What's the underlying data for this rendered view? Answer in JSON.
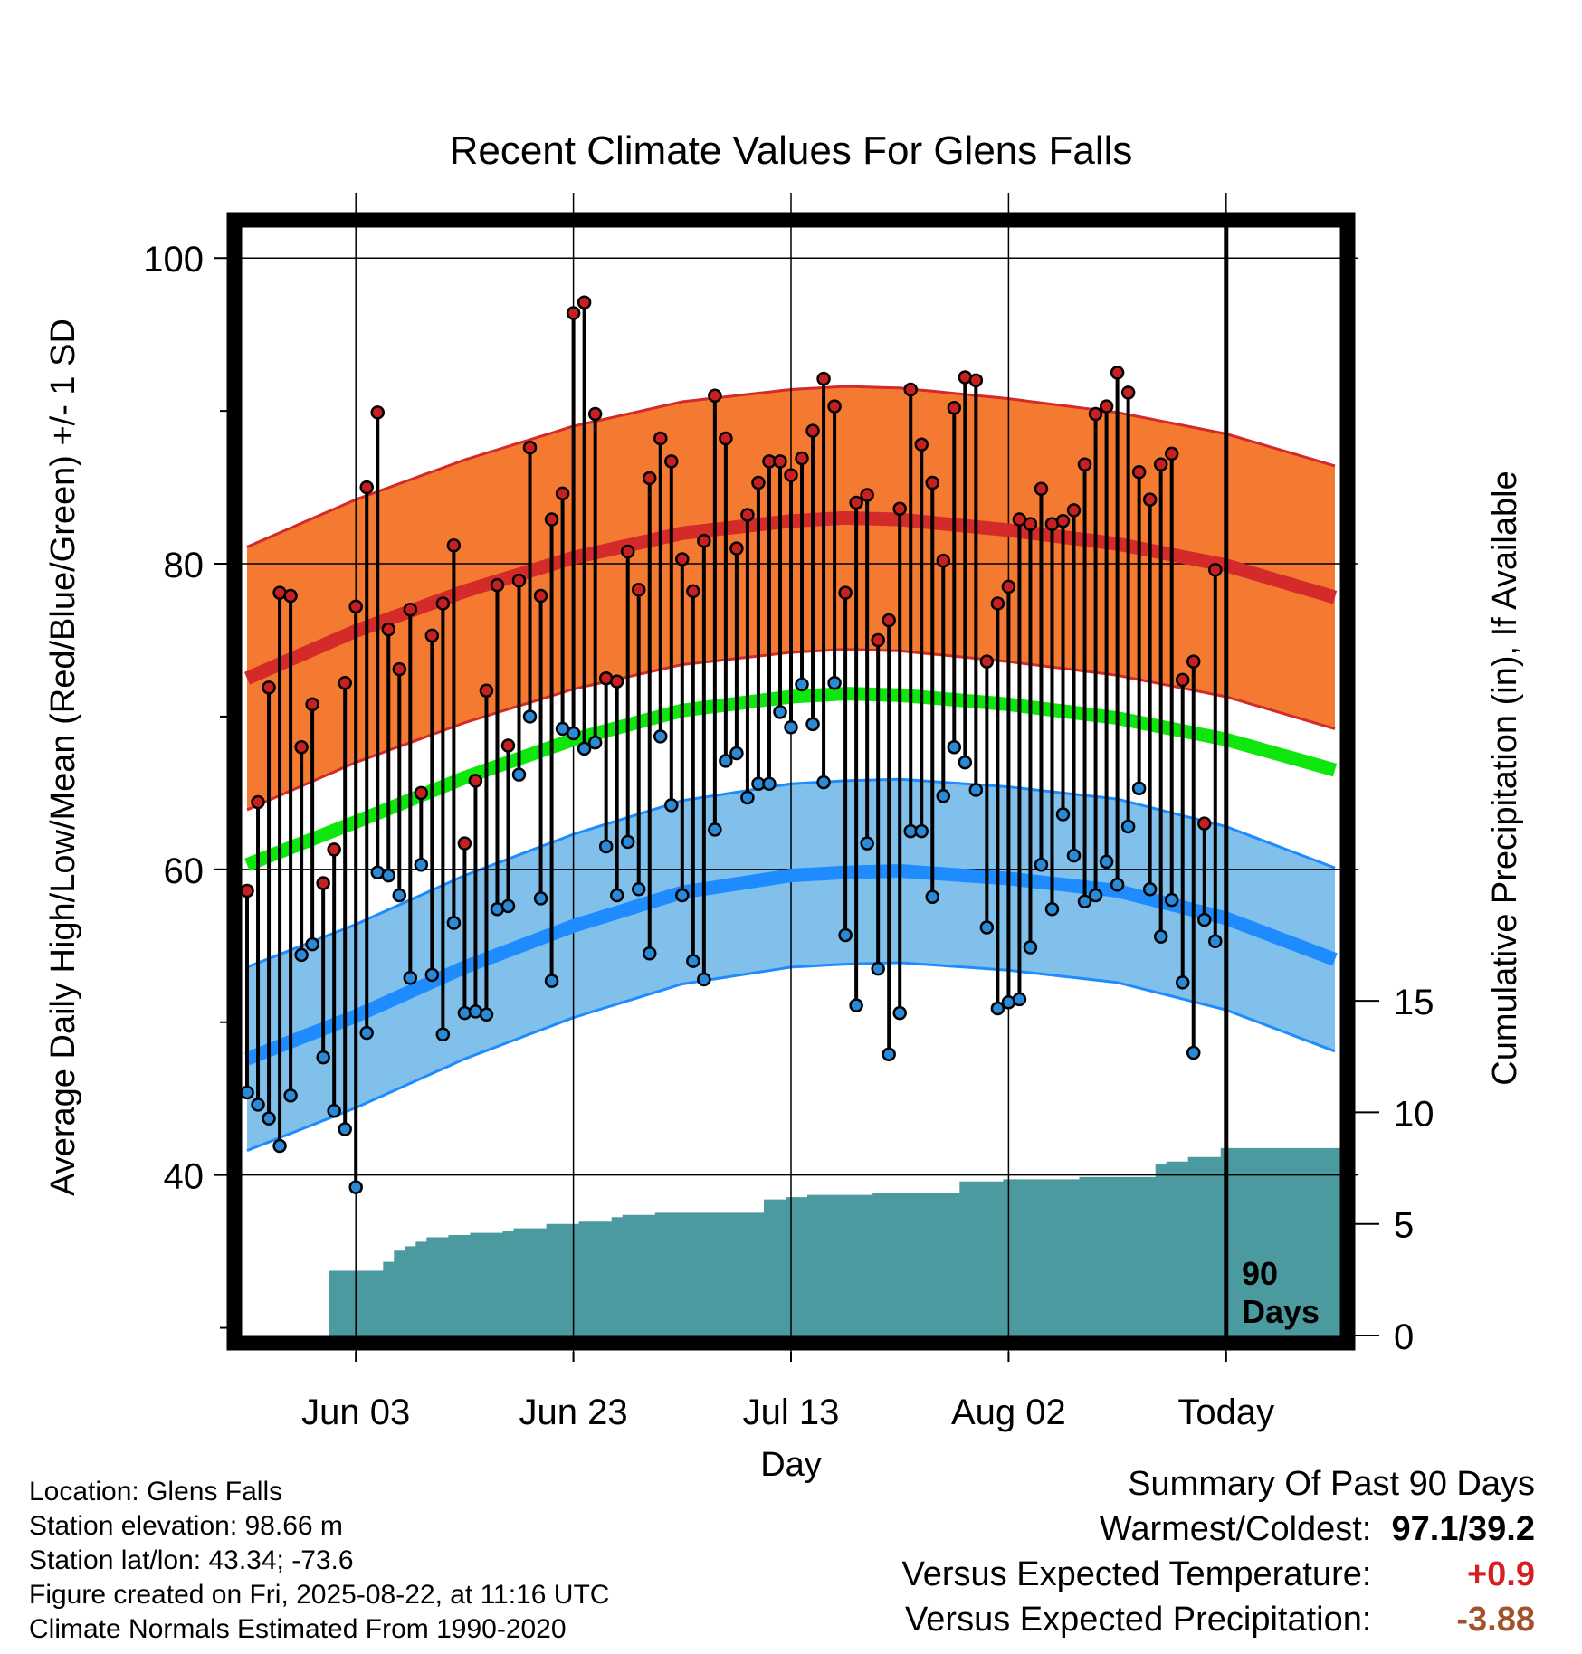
{
  "info": {
    "location": "Location: Glens Falls",
    "elevation": "Station elevation: 98.66 m",
    "latlon": "Station lat/lon: 43.34; -73.6",
    "created": "Figure created on Fri, 2025-08-22, at 11:16 UTC",
    "normals": "Climate Normals Estimated From 1990-2020"
  },
  "summary": {
    "heading": "Summary Of Past 90 Days",
    "warm_cold_label": "Warmest/Coldest:",
    "warm_cold_value": "97.1/39.2",
    "temp_label": "Versus Expected Temperature:",
    "temp_value": "+0.9",
    "precip_label": "Versus Expected Precipitation:",
    "precip_value": "-3.88",
    "temp_color": "#d42020",
    "precip_color": "#a0522d"
  },
  "chart_data": {
    "type": "line",
    "title": "Recent Climate Values For Glens Falls",
    "xlabel": "Day",
    "ylabel": "Average Daily High/Low/Mean (Red/Blue/Green) +/- 1 SD",
    "ylabel_right": "Cumulative Precipitation (in), If Available",
    "today_label_1": "90",
    "today_label_2": "Days",
    "x_ticks": [
      "Jun 03",
      "Jun 23",
      "Jul 13",
      "Aug 02",
      "Today"
    ],
    "x_tick_days": [
      11,
      31,
      51,
      71,
      91
    ],
    "y_ticks": [
      "40",
      "60",
      "80",
      "100"
    ],
    "y_tick_values": [
      40,
      60,
      80,
      100
    ],
    "ylim": [
      29.5,
      102.5
    ],
    "xlim": [
      0.5,
      101
    ],
    "precip_ticks": [
      "0",
      "5",
      "10",
      "15"
    ],
    "precip_tick_values": [
      0,
      5,
      10,
      15
    ],
    "precip_range": [
      0,
      50
    ],
    "today_day": 91,
    "colors": {
      "high_normal": "#d42a2a",
      "high_band": "#f47a32",
      "low_normal": "#1e8cff",
      "low_band": "#80c0ea",
      "mean_normal": "#0ee60e",
      "precip": "#4a9aa0",
      "high_point": "#c82020",
      "low_point": "#2a8ad8"
    },
    "highs": [
      58.6,
      64.4,
      71.9,
      78.1,
      77.9,
      68,
      70.8,
      59.1,
      61.3,
      72.2,
      77.2,
      85,
      89.9,
      75.7,
      73.1,
      77,
      65,
      75.3,
      77.4,
      81.2,
      61.7,
      65.8,
      71.7,
      78.6,
      68.1,
      78.9,
      87.6,
      77.9,
      82.9,
      84.6,
      96.4,
      97.1,
      89.8,
      72.5,
      72.3,
      80.8,
      78.3,
      85.6,
      88.2,
      86.7,
      80.3,
      78.2,
      81.5,
      91,
      88.2,
      81,
      83.2,
      85.3,
      86.7,
      86.7,
      85.8,
      86.9,
      88.7,
      92.1,
      90.3,
      78.1,
      84,
      84.5,
      75,
      76.3,
      83.6,
      91.4,
      87.8,
      85.3,
      80.2,
      90.2,
      92.2,
      92,
      73.6,
      77.4,
      78.5,
      82.9,
      82.6,
      84.9,
      82.6,
      82.8,
      83.5,
      86.5,
      89.8,
      90.3,
      92.5,
      91.2,
      86,
      84.2,
      86.5,
      87.2,
      72.4,
      73.6,
      63,
      79.6
    ],
    "lows": [
      45.4,
      44.6,
      43.7,
      41.9,
      45.2,
      54.4,
      55.1,
      47.7,
      44.2,
      43,
      39.2,
      49.3,
      59.8,
      59.6,
      58.3,
      52.9,
      60.3,
      53.1,
      49.2,
      56.5,
      50.6,
      50.7,
      50.5,
      57.4,
      57.6,
      66.2,
      70,
      58.1,
      52.7,
      69.2,
      68.9,
      67.9,
      68.3,
      61.5,
      58.3,
      61.8,
      58.7,
      54.5,
      68.7,
      64.2,
      58.3,
      54,
      52.8,
      62.6,
      67.1,
      67.6,
      64.7,
      65.6,
      65.6,
      70.3,
      69.3,
      72.1,
      69.5,
      65.7,
      72.2,
      55.7,
      51.1,
      61.7,
      53.5,
      47.9,
      50.6,
      62.5,
      62.5,
      58.2,
      64.8,
      68,
      67,
      65.2,
      56.2,
      50.9,
      51.3,
      51.5,
      54.9,
      60.3,
      57.4,
      63.6,
      60.9,
      57.9,
      58.3,
      60.5,
      59,
      62.8,
      65.3,
      58.7,
      55.6,
      58,
      52.6,
      48,
      56.7,
      55.3
    ],
    "precip": [
      0,
      0,
      0,
      0,
      0,
      0,
      0,
      0,
      2.9,
      2.9,
      2.9,
      2.9,
      2.9,
      3.3,
      3.8,
      4,
      4.2,
      4.4,
      4.4,
      4.5,
      4.5,
      4.6,
      4.6,
      4.6,
      4.7,
      4.8,
      4.8,
      4.8,
      5,
      5,
      5,
      5.1,
      5.1,
      5.1,
      5.3,
      5.4,
      5.4,
      5.4,
      5.5,
      5.5,
      5.5,
      5.5,
      5.5,
      5.5,
      5.5,
      5.5,
      5.5,
      5.5,
      6.1,
      6.1,
      6.2,
      6.2,
      6.3,
      6.3,
      6.3,
      6.3,
      6.3,
      6.3,
      6.4,
      6.4,
      6.4,
      6.4,
      6.4,
      6.4,
      6.4,
      6.4,
      6.9,
      6.9,
      6.9,
      6.9,
      7,
      7,
      7,
      7,
      7,
      7,
      7,
      7.1,
      7.1,
      7.1,
      7.1,
      7.1,
      7.1,
      7.1,
      7.7,
      7.8,
      7.8,
      8,
      8,
      8,
      8.4,
      8.4,
      8.4,
      8.4,
      8.4,
      8.4,
      8.4,
      8.4,
      8.4,
      8.4,
      8.4
    ],
    "normals": {
      "high_days": [
        1,
        11,
        21,
        31,
        41,
        51,
        56,
        61,
        71,
        81,
        91,
        101
      ],
      "high_values": [
        72.5,
        75.6,
        78.2,
        80.4,
        82,
        82.8,
        83,
        82.9,
        82.2,
        81.3,
        79.9,
        77.8
      ],
      "high_sd": 8.6,
      "low_days": [
        1,
        11,
        21,
        31,
        41,
        51,
        56,
        61,
        71,
        81,
        91,
        101
      ],
      "low_values": [
        47.6,
        50.4,
        53.6,
        56.3,
        58.5,
        59.6,
        59.8,
        59.9,
        59.4,
        58.6,
        56.8,
        54.1
      ],
      "low_sd": 6,
      "mean_days": [
        1,
        11,
        21,
        31,
        41,
        51,
        56,
        61,
        71,
        81,
        91,
        101
      ],
      "mean_values": [
        60.3,
        63.1,
        66,
        68.5,
        70.4,
        71.3,
        71.5,
        71.4,
        70.8,
        69.9,
        68.5,
        66.5
      ],
      "mean_sd": 0
    }
  }
}
